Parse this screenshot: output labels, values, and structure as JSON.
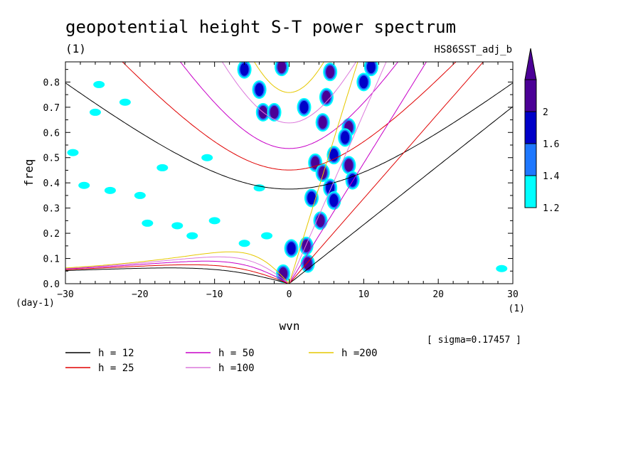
{
  "chart_data": {
    "type": "contour",
    "title": "geopotential height S-T power spectrum",
    "subtitle_left": "(1)",
    "subtitle_right": "HS86SST_adj_b",
    "xlabel": "wvn",
    "ylabel": "freq",
    "x_unit": "(1)",
    "y_unit": "(day-1)",
    "xlim": [
      -30,
      30
    ],
    "ylim": [
      0.0,
      0.88
    ],
    "x_ticks": [
      -30,
      -20,
      -10,
      0,
      10,
      20,
      30
    ],
    "x_tick_labels": [
      "-30",
      "-20",
      "-10",
      "0",
      "10",
      "20",
      "30"
    ],
    "y_ticks": [
      0.0,
      0.1,
      0.2,
      0.3,
      0.4,
      0.5,
      0.6,
      0.7,
      0.8
    ],
    "y_tick_labels": [
      "0.0",
      "0.1",
      "0.2",
      "0.3",
      "0.4",
      "0.5",
      "0.6",
      "0.7",
      "0.8"
    ],
    "sigma_note": "[ sigma=0.17457 ]",
    "colorbar": {
      "levels": [
        1.2,
        1.4,
        1.6,
        2
      ],
      "level_labels": [
        "1.2",
        "1.4",
        "1.6",
        "2"
      ],
      "colors": [
        "#00ffff",
        "#1e78ff",
        "#0000c8",
        "#4b0096"
      ]
    },
    "dispersion_curves": [
      {
        "name": "h = 12",
        "h": 12,
        "color": "#000000"
      },
      {
        "name": "h = 25",
        "h": 25,
        "color": "#e00000"
      },
      {
        "name": "h = 50",
        "h": 50,
        "color": "#c800c8"
      },
      {
        "name": "h =100",
        "h": 100,
        "color": "#dc78dc"
      },
      {
        "name": "h =200",
        "h": 200,
        "color": "#e6c800"
      }
    ],
    "contour_blobs": [
      {
        "x": -25.5,
        "y": 0.79,
        "level": 1.2
      },
      {
        "x": -22.0,
        "y": 0.72,
        "level": 1.2
      },
      {
        "x": -26.0,
        "y": 0.68,
        "level": 1.2
      },
      {
        "x": -29.0,
        "y": 0.52,
        "level": 1.2
      },
      {
        "x": -27.5,
        "y": 0.39,
        "level": 1.2
      },
      {
        "x": -24.0,
        "y": 0.37,
        "level": 1.2
      },
      {
        "x": -20.0,
        "y": 0.35,
        "level": 1.2
      },
      {
        "x": -17.0,
        "y": 0.46,
        "level": 1.2
      },
      {
        "x": -11.0,
        "y": 0.5,
        "level": 1.2
      },
      {
        "x": -19.0,
        "y": 0.24,
        "level": 1.2
      },
      {
        "x": -15.0,
        "y": 0.23,
        "level": 1.2
      },
      {
        "x": -10.0,
        "y": 0.25,
        "level": 1.2
      },
      {
        "x": -13.0,
        "y": 0.19,
        "level": 1.2
      },
      {
        "x": -6.0,
        "y": 0.16,
        "level": 1.2
      },
      {
        "x": -4.0,
        "y": 0.38,
        "level": 1.2
      },
      {
        "x": -3.0,
        "y": 0.19,
        "level": 1.2
      },
      {
        "x": 28.5,
        "y": 0.06,
        "level": 1.2
      },
      {
        "x": -6.0,
        "y": 0.85,
        "level": 1.6
      },
      {
        "x": -4.0,
        "y": 0.77,
        "level": 1.6
      },
      {
        "x": -3.5,
        "y": 0.68,
        "level": 2.0
      },
      {
        "x": -2.0,
        "y": 0.68,
        "level": 2.0
      },
      {
        "x": -1.0,
        "y": 0.86,
        "level": 2.0
      },
      {
        "x": 2.0,
        "y": 0.7,
        "level": 1.6
      },
      {
        "x": 5.5,
        "y": 0.84,
        "level": 2.0
      },
      {
        "x": 5.0,
        "y": 0.74,
        "level": 2.0
      },
      {
        "x": 4.5,
        "y": 0.64,
        "level": 2.0
      },
      {
        "x": 3.5,
        "y": 0.48,
        "level": 2.0
      },
      {
        "x": 4.5,
        "y": 0.44,
        "level": 2.0
      },
      {
        "x": 5.5,
        "y": 0.38,
        "level": 1.6
      },
      {
        "x": 3.0,
        "y": 0.34,
        "level": 1.6
      },
      {
        "x": 4.2,
        "y": 0.25,
        "level": 2.0
      },
      {
        "x": 2.3,
        "y": 0.15,
        "level": 2.0
      },
      {
        "x": 0.3,
        "y": 0.14,
        "level": 1.6
      },
      {
        "x": -0.8,
        "y": 0.04,
        "level": 2.0
      },
      {
        "x": 2.5,
        "y": 0.08,
        "level": 2.0
      },
      {
        "x": 8.0,
        "y": 0.62,
        "level": 2.0
      },
      {
        "x": 7.5,
        "y": 0.58,
        "level": 1.6
      },
      {
        "x": 10.0,
        "y": 0.8,
        "level": 1.6
      },
      {
        "x": 11.0,
        "y": 0.86,
        "level": 1.6
      },
      {
        "x": 8.0,
        "y": 0.47,
        "level": 2.0
      },
      {
        "x": 8.5,
        "y": 0.41,
        "level": 1.6
      },
      {
        "x": 6.0,
        "y": 0.33,
        "level": 1.6
      },
      {
        "x": 6.0,
        "y": 0.51,
        "level": 1.6
      }
    ]
  }
}
